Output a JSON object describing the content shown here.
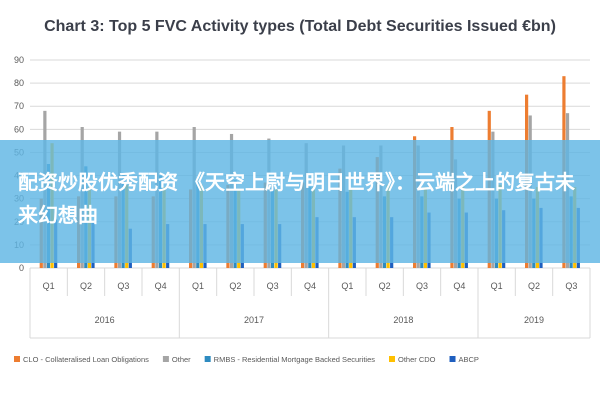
{
  "chart_data": {
    "type": "bar",
    "title": "Chart 3: Top 5 FVC Activity types (Total Debt Securities Issued €bn)",
    "xlabel": "",
    "ylabel": "",
    "ylim": [
      0,
      90
    ],
    "yticks": [
      0,
      10,
      20,
      30,
      40,
      50,
      60,
      70,
      80,
      90
    ],
    "grid": true,
    "legend_position": "bottom",
    "categories": [
      "Q1",
      "Q2",
      "Q3",
      "Q4",
      "Q1",
      "Q2",
      "Q3",
      "Q4",
      "Q1",
      "Q2",
      "Q3",
      "Q4",
      "Q1",
      "Q2",
      "Q3"
    ],
    "year_groups": [
      {
        "label": "2016",
        "count": 4
      },
      {
        "label": "2017",
        "count": 4
      },
      {
        "label": "2018",
        "count": 4
      },
      {
        "label": "2019",
        "count": 3
      }
    ],
    "series": [
      {
        "name": "CLO - Collateralised Loan Obligations",
        "color": "#ed7d31",
        "values": [
          30,
          31,
          31,
          31,
          34,
          36,
          37,
          37,
          43,
          48,
          57,
          61,
          68,
          75,
          83
        ]
      },
      {
        "name": "Other",
        "color": "#a5a5a5",
        "values": [
          68,
          61,
          59,
          59,
          61,
          58,
          56,
          54,
          53,
          53,
          53,
          47,
          59,
          66,
          67
        ]
      },
      {
        "name": "RMBS - Residential Mortgage Backed Securities",
        "color": "#2e8bc0",
        "values": [
          45,
          44,
          41,
          40,
          37,
          38,
          37,
          35,
          33,
          31,
          31,
          30,
          30,
          30,
          31
        ]
      },
      {
        "name": "Other CDO",
        "color": "#ffc000",
        "values": [
          54,
          35,
          36,
          35,
          36,
          34,
          34,
          35,
          34,
          36,
          35,
          35,
          36,
          35,
          35
        ]
      },
      {
        "name": "ABCP",
        "color": "#1f5fbf",
        "values": [
          21,
          20,
          17,
          19,
          19,
          19,
          19,
          22,
          22,
          22,
          24,
          24,
          25,
          26,
          26
        ]
      }
    ]
  },
  "overlay": {
    "text": "配资炒股优秀配资 《天空上尉与明日世界》：云端之上的复古未来幻想曲"
  }
}
